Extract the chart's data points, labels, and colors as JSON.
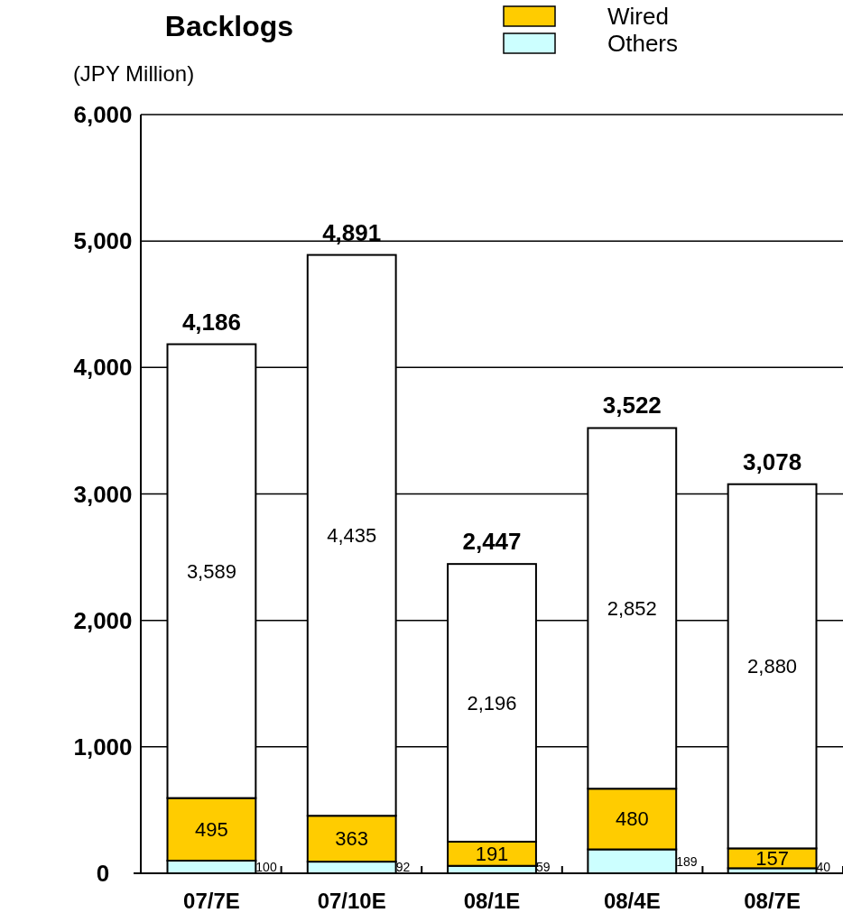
{
  "chart_data": {
    "type": "bar",
    "title": "Backlogs",
    "ylabel": "(JPY Million)",
    "categories": [
      "07/7E",
      "07/10E",
      "08/1E",
      "08/4E",
      "08/7E"
    ],
    "stacked": true,
    "series": [
      {
        "name": "Others",
        "color": "#ccffff",
        "values": [
          100,
          92,
          59,
          189,
          40
        ],
        "value_labels": [
          "100",
          "92",
          "59",
          "189",
          "40"
        ]
      },
      {
        "name": "Wired",
        "color": "#ffcc00",
        "values": [
          495,
          363,
          191,
          480,
          157
        ],
        "value_labels": [
          "495",
          "363",
          "191",
          "480",
          "157"
        ]
      },
      {
        "color": "#ffffff",
        "values": [
          3589,
          4435,
          2196,
          2852,
          2880
        ],
        "value_labels": [
          "3,589",
          "4,435",
          "2,196",
          "2,852",
          "2,880"
        ]
      }
    ],
    "totals": [
      "4,186",
      "4,891",
      "2,447",
      "3,522",
      "3,078"
    ],
    "ylim": [
      0,
      6000
    ],
    "yticks": [
      {
        "value": 0,
        "label": "0"
      },
      {
        "value": 1000,
        "label": "1,000"
      },
      {
        "value": 2000,
        "label": "2,000"
      },
      {
        "value": 3000,
        "label": "3,000"
      },
      {
        "value": 4000,
        "label": "4,000"
      },
      {
        "value": 5000,
        "label": "5,000"
      },
      {
        "value": 6000,
        "label": "6,000"
      }
    ],
    "grid": "y",
    "legend": "top right"
  }
}
